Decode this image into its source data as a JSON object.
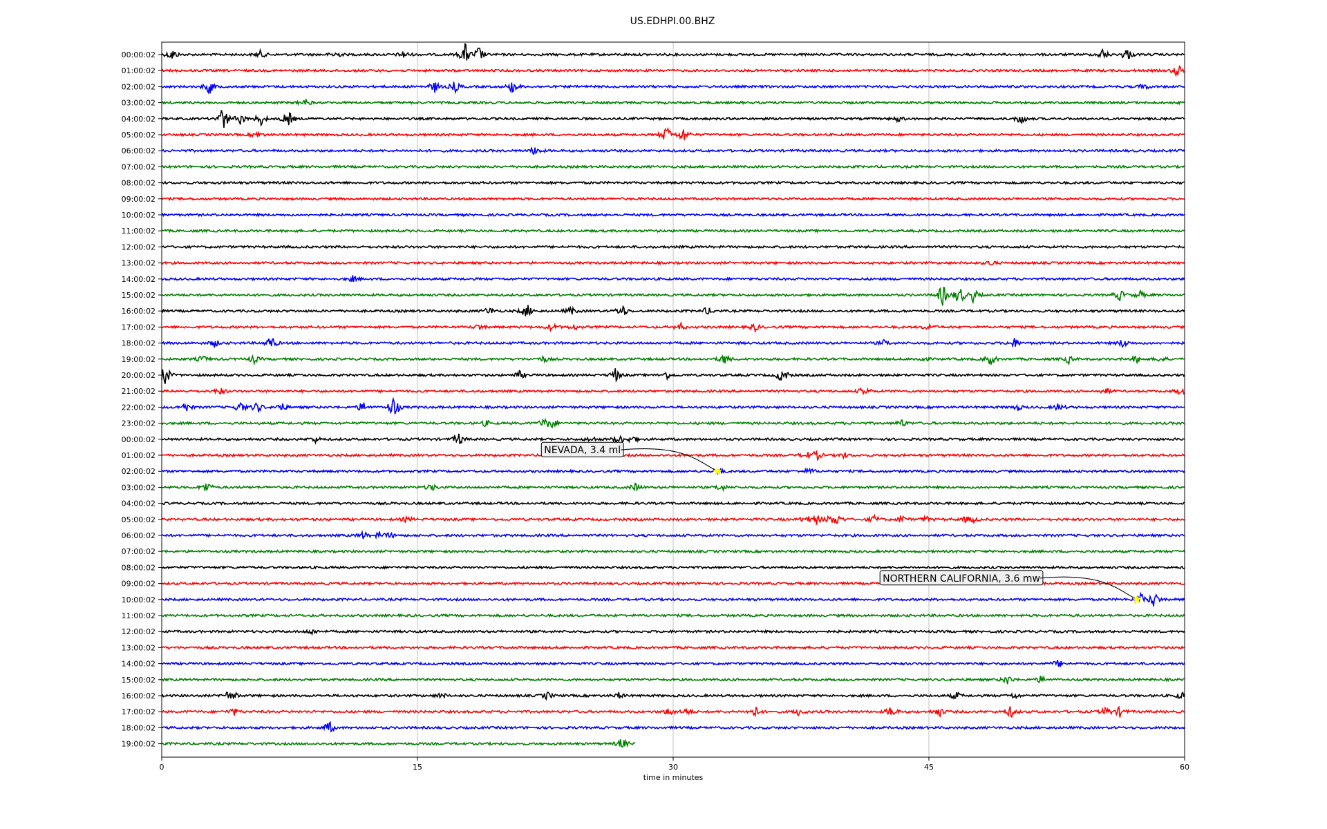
{
  "chart_data": {
    "type": "line",
    "title": "US.EDHPI.00.BHZ",
    "xlabel": "time in minutes",
    "ylabel": "",
    "xlim": [
      0,
      60
    ],
    "x_ticks": [
      0,
      15,
      30,
      45,
      60
    ],
    "grid": "vertical",
    "colors": [
      "#000000",
      "#ff0000",
      "#0000ff",
      "#008000"
    ],
    "row_labels": [
      "00:00:02",
      "01:00:02",
      "02:00:02",
      "03:00:02",
      "04:00:02",
      "05:00:02",
      "06:00:02",
      "07:00:02",
      "08:00:02",
      "09:00:02",
      "10:00:02",
      "11:00:02",
      "12:00:02",
      "13:00:02",
      "14:00:02",
      "15:00:02",
      "16:00:02",
      "17:00:02",
      "18:00:02",
      "19:00:02",
      "20:00:02",
      "21:00:02",
      "22:00:02",
      "23:00:02",
      "00:00:02",
      "01:00:02",
      "02:00:02",
      "03:00:02",
      "04:00:02",
      "05:00:02",
      "06:00:02",
      "07:00:02",
      "08:00:02",
      "09:00:02",
      "10:00:02",
      "11:00:02",
      "12:00:02",
      "13:00:02",
      "14:00:02",
      "15:00:02",
      "16:00:02",
      "17:00:02",
      "18:00:02",
      "19:00:02"
    ],
    "last_row_end_minute": 27.8,
    "events": [
      [
        [
          0.6,
          1.2
        ],
        [
          5.8,
          0.8
        ],
        [
          10.2,
          0.8
        ],
        [
          14.2,
          0.8
        ],
        [
          17.8,
          2.4
        ],
        [
          18.6,
          1.8
        ],
        [
          55.2,
          1.2
        ],
        [
          56.6,
          1.4
        ]
      ],
      [
        [
          59.6,
          1.4
        ]
      ],
      [
        [
          2.8,
          1.5
        ],
        [
          16.0,
          1.2
        ],
        [
          17.2,
          1.2
        ],
        [
          20.6,
          1.4
        ],
        [
          57.6,
          0.6
        ]
      ],
      [
        [
          8.4,
          0.8
        ]
      ],
      [
        [
          3.6,
          2.8
        ],
        [
          4.6,
          1.2
        ],
        [
          5.8,
          1.4
        ],
        [
          7.4,
          1.8
        ],
        [
          43.2,
          0.6
        ],
        [
          50.4,
          1.2
        ]
      ],
      [
        [
          5.6,
          0.6
        ],
        [
          29.6,
          2.0
        ],
        [
          30.6,
          1.6
        ]
      ],
      [
        [
          21.9,
          1.0
        ]
      ],
      [],
      [],
      [],
      [],
      [],
      [],
      [
        [
          48.6,
          0.6
        ]
      ],
      [
        [
          11.2,
          0.6
        ]
      ],
      [
        [
          45.8,
          2.4
        ],
        [
          46.8,
          2.2
        ],
        [
          47.6,
          1.4
        ],
        [
          56.2,
          1.2
        ],
        [
          57.4,
          0.8
        ]
      ],
      [
        [
          19.2,
          0.8
        ],
        [
          21.4,
          1.6
        ],
        [
          24.0,
          0.8
        ],
        [
          27.0,
          1.4
        ],
        [
          32.0,
          0.8
        ]
      ],
      [
        [
          18.6,
          0.6
        ],
        [
          22.9,
          0.8
        ],
        [
          24.2,
          0.6
        ],
        [
          30.4,
          0.8
        ],
        [
          34.8,
          0.8
        ],
        [
          45.0,
          0.6
        ]
      ],
      [
        [
          3.1,
          0.8
        ],
        [
          6.4,
          1.6
        ],
        [
          42.4,
          0.6
        ],
        [
          50.0,
          1.0
        ],
        [
          56.4,
          1.0
        ]
      ],
      [
        [
          2.4,
          0.8
        ],
        [
          5.4,
          0.8
        ],
        [
          22.4,
          0.6
        ],
        [
          33.0,
          1.2
        ],
        [
          44.6,
          0.6
        ],
        [
          48.6,
          1.4
        ],
        [
          53.2,
          0.8
        ],
        [
          57.2,
          0.8
        ],
        [
          58.6,
          0.6
        ]
      ],
      [
        [
          0.2,
          2.4
        ],
        [
          21.0,
          0.8
        ],
        [
          26.6,
          1.4
        ],
        [
          29.6,
          0.8
        ],
        [
          36.4,
          1.8
        ]
      ],
      [
        [
          3.4,
          0.8
        ],
        [
          41.2,
          1.0
        ],
        [
          55.4,
          0.6
        ],
        [
          59.8,
          0.8
        ]
      ],
      [
        [
          1.4,
          1.0
        ],
        [
          4.6,
          1.2
        ],
        [
          5.6,
          1.2
        ],
        [
          7.0,
          1.0
        ],
        [
          11.8,
          1.2
        ],
        [
          13.6,
          2.6
        ],
        [
          50.2,
          0.6
        ],
        [
          52.6,
          0.8
        ]
      ],
      [
        [
          19.0,
          0.6
        ],
        [
          22.4,
          1.0
        ],
        [
          22.8,
          1.4
        ],
        [
          43.4,
          0.8
        ]
      ],
      [
        [
          9.0,
          0.6
        ],
        [
          17.4,
          1.4
        ],
        [
          25.2,
          0.6
        ],
        [
          26.8,
          1.2
        ],
        [
          27.6,
          0.8
        ]
      ],
      [
        [
          37.8,
          0.8
        ],
        [
          38.4,
          1.0
        ],
        [
          40.0,
          0.6
        ]
      ],
      [
        [
          32.6,
          0.8
        ],
        [
          38.0,
          0.6
        ]
      ],
      [
        [
          2.6,
          1.2
        ],
        [
          15.8,
          0.8
        ],
        [
          27.8,
          0.8
        ],
        [
          32.8,
          0.8
        ]
      ],
      [],
      [
        [
          14.4,
          0.6
        ],
        [
          37.8,
          1.0
        ],
        [
          38.4,
          1.0
        ],
        [
          39.2,
          1.0
        ],
        [
          39.6,
          1.2
        ],
        [
          41.8,
          0.8
        ],
        [
          43.4,
          0.8
        ],
        [
          44.8,
          0.6
        ],
        [
          47.2,
          0.6
        ],
        [
          47.6,
          0.6
        ]
      ],
      [
        [
          11.8,
          0.8
        ],
        [
          12.8,
          0.8
        ],
        [
          13.4,
          0.6
        ]
      ],
      [],
      [],
      [],
      [
        [
          57.4,
          1.4
        ],
        [
          58.2,
          1.8
        ]
      ],
      [],
      [
        [
          8.8,
          0.6
        ]
      ],
      [],
      [
        [
          52.6,
          0.8
        ]
      ],
      [
        [
          49.6,
          1.0
        ],
        [
          51.6,
          0.8
        ]
      ],
      [
        [
          3.8,
          0.8
        ],
        [
          4.2,
          0.8
        ],
        [
          16.4,
          0.6
        ],
        [
          22.6,
          0.8
        ],
        [
          26.8,
          0.6
        ],
        [
          46.6,
          0.8
        ],
        [
          50.0,
          0.6
        ],
        [
          59.8,
          0.8
        ]
      ],
      [
        [
          4.2,
          0.8
        ],
        [
          29.8,
          1.0
        ],
        [
          30.8,
          0.8
        ],
        [
          34.8,
          1.2
        ],
        [
          37.4,
          0.8
        ],
        [
          42.8,
          1.2
        ],
        [
          45.6,
          1.0
        ],
        [
          49.8,
          1.2
        ],
        [
          55.4,
          1.0
        ],
        [
          56.2,
          1.0
        ]
      ],
      [
        [
          9.8,
          1.4
        ]
      ],
      [
        [
          27.0,
          1.2
        ]
      ]
    ],
    "annotations": [
      {
        "text": "NEVADA, 3.4 ml",
        "row": 26,
        "x": 32.6
      },
      {
        "text": "NORTHERN CALIFORNIA, 3.6 mw",
        "row": 34,
        "x": 57.2
      }
    ]
  }
}
